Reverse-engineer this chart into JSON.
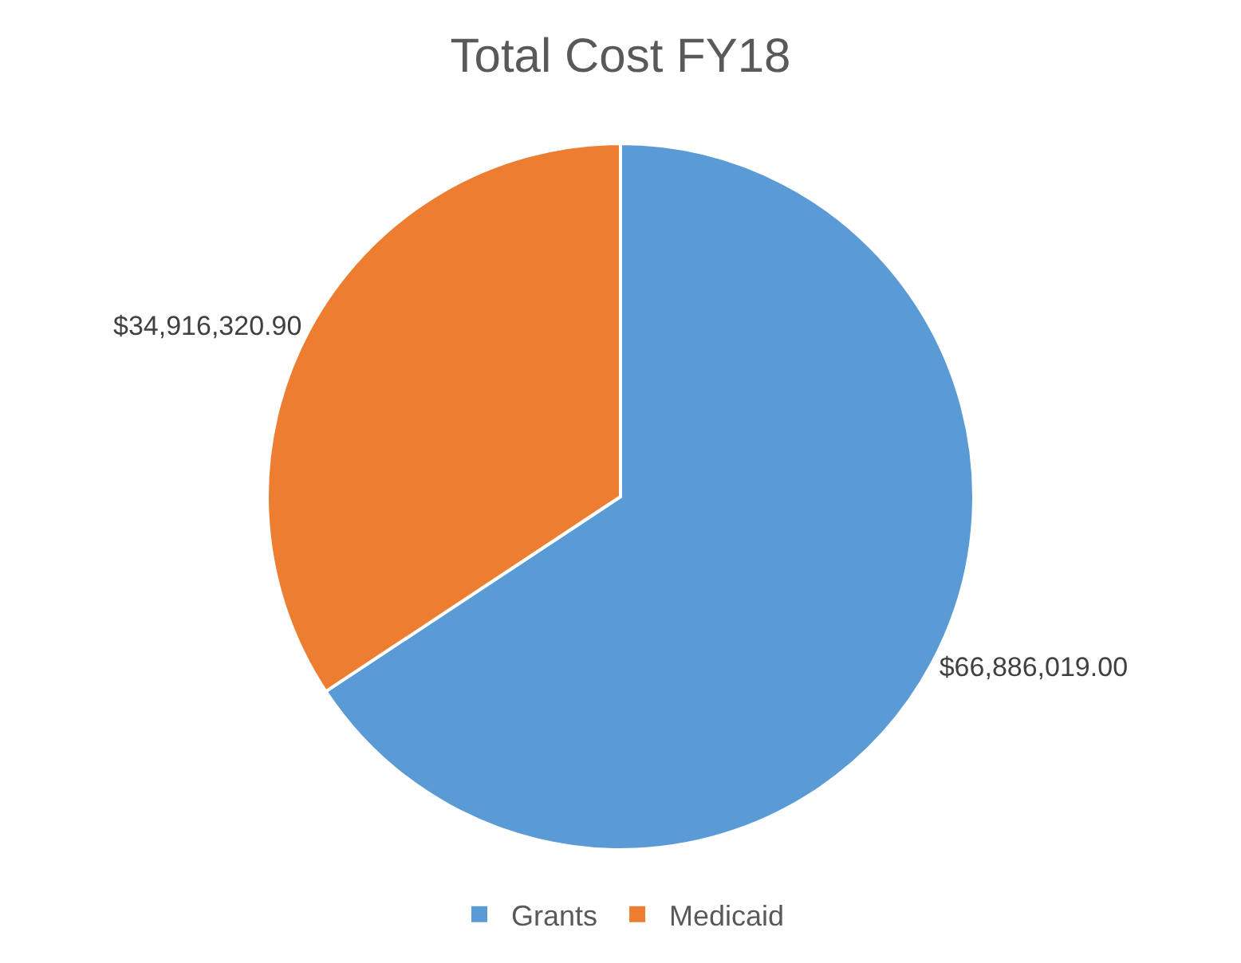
{
  "chart_data": {
    "type": "pie",
    "title": "Total Cost FY18",
    "categories": [
      "Grants",
      "Medicaid"
    ],
    "values": [
      66886019.0,
      34916320.9
    ],
    "value_labels": [
      "$66,886,019.00",
      "$34,916,320.90"
    ],
    "colors": [
      "#5b9bd5",
      "#ed7d31"
    ],
    "legend": "bottom"
  }
}
